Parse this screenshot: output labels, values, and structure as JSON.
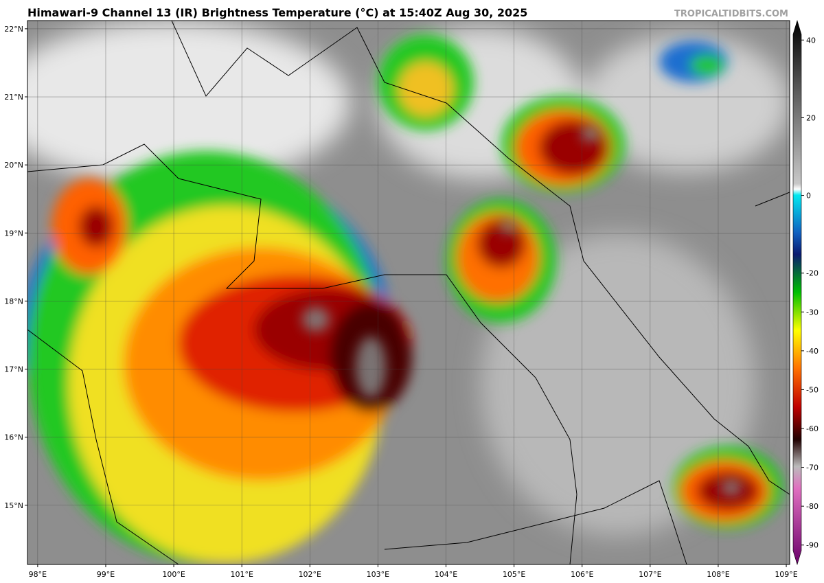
{
  "header": {
    "title": "Himawari-9 Channel 13 (IR) Brightness Temperature (°C) at 15:40Z Aug 30, 2025",
    "watermark": "TROPICALTIDBITS.COM"
  },
  "map": {
    "lon_lim": [
      97.85,
      109.05
    ],
    "lat_lim": [
      14.13,
      22.12
    ],
    "lon_ticks": [
      {
        "value": 98,
        "label": "98°E"
      },
      {
        "value": 99,
        "label": "99°E"
      },
      {
        "value": 100,
        "label": "100°E"
      },
      {
        "value": 101,
        "label": "101°E"
      },
      {
        "value": 102,
        "label": "102°E"
      },
      {
        "value": 103,
        "label": "103°E"
      },
      {
        "value": 104,
        "label": "104°E"
      },
      {
        "value": 105,
        "label": "105°E"
      },
      {
        "value": 106,
        "label": "106°E"
      },
      {
        "value": 107,
        "label": "107°E"
      },
      {
        "value": 108,
        "label": "108°E"
      },
      {
        "value": 109,
        "label": "109°E"
      }
    ],
    "lat_ticks": [
      {
        "value": 15,
        "label": "15°N"
      },
      {
        "value": 16,
        "label": "16°N"
      },
      {
        "value": 17,
        "label": "17°N"
      },
      {
        "value": 18,
        "label": "18°N"
      },
      {
        "value": 19,
        "label": "19°N"
      },
      {
        "value": 20,
        "label": "20°N"
      },
      {
        "value": 21,
        "label": "21°N"
      },
      {
        "value": 22,
        "label": "22°N"
      }
    ]
  },
  "colorbar": {
    "lim": [
      -95,
      45
    ],
    "ticks": [
      40,
      20,
      0,
      -20,
      -30,
      -40,
      -50,
      -60,
      -70,
      -80,
      -90
    ]
  }
}
